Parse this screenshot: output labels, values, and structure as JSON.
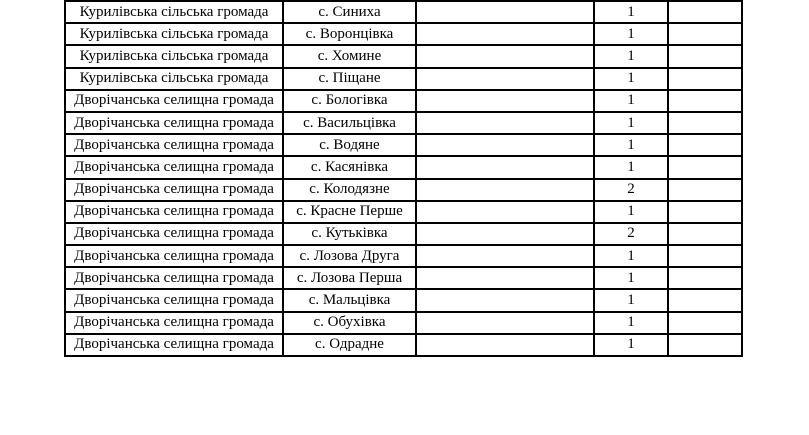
{
  "page": {
    "background_color": "#ffffff",
    "text_color": "#000000",
    "table_border_color": "#000000"
  },
  "table": {
    "column_keys": [
      "hromada",
      "settlement",
      "blank1",
      "count",
      "blank2"
    ],
    "rows": [
      [
        "Курилівська сільська громада",
        "с. Синиха",
        "",
        "1",
        ""
      ],
      [
        "Курилівська сільська громада",
        "с. Воронцівка",
        "",
        "1",
        ""
      ],
      [
        "Курилівська сільська громада",
        "с. Хомине",
        "",
        "1",
        ""
      ],
      [
        "Курилівська сільська громада",
        "с. Піщане",
        "",
        "1",
        ""
      ],
      [
        "Дворічанська селищна громада",
        "с. Бологівка",
        "",
        "1",
        ""
      ],
      [
        "Дворічанська селищна громада",
        "с. Васильцівка",
        "",
        "1",
        ""
      ],
      [
        "Дворічанська селищна громада",
        "с. Водяне",
        "",
        "1",
        ""
      ],
      [
        "Дворічанська селищна громада",
        "с. Касянівка",
        "",
        "1",
        ""
      ],
      [
        "Дворічанська селищна громада",
        "с. Колодязне",
        "",
        "2",
        ""
      ],
      [
        "Дворічанська селищна громада",
        "с. Красне Перше",
        "",
        "1",
        ""
      ],
      [
        "Дворічанська селищна громада",
        "с. Кутьківка",
        "",
        "2",
        ""
      ],
      [
        "Дворічанська селищна громада",
        "с. Лозова Друга",
        "",
        "1",
        ""
      ],
      [
        "Дворічанська селищна громада",
        "с. Лозова Перша",
        "",
        "1",
        ""
      ],
      [
        "Дворічанська селищна громада",
        "с. Мальцівка",
        "",
        "1",
        ""
      ],
      [
        "Дворічанська селищна громада",
        "с. Обухівка",
        "",
        "1",
        ""
      ],
      [
        "Дворічанська селищна громада",
        "с. Одрадне",
        "",
        "1",
        ""
      ]
    ]
  }
}
